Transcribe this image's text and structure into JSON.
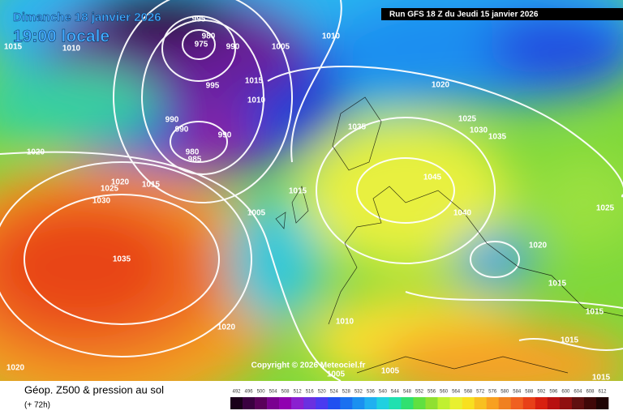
{
  "header": {
    "title": "Dimanche 18 janvier 2026",
    "time": "19:00 locale",
    "run": "Run GFS 18 Z du Jeudi 15 janvier 2026"
  },
  "map": {
    "isobar_labels": [
      "1015",
      "1010",
      "995",
      "980",
      "975",
      "990",
      "1005",
      "1010",
      "995",
      "1015",
      "1010",
      "990",
      "990",
      "990",
      "980",
      "985",
      "1035",
      "1025",
      "1030",
      "1035",
      "1020",
      "1020",
      "1020",
      "1025",
      "1015",
      "1030",
      "1015",
      "1005",
      "1045",
      "1040",
      "1025",
      "1020",
      "1035",
      "1015",
      "1015",
      "1020",
      "1010",
      "1015",
      "1020",
      "1005",
      "1005",
      "1015"
    ],
    "copyright": "Copyright © 2026 Meteociel.fr"
  },
  "legend": {
    "title": "Géop. Z500 & pression au sol",
    "subtitle": "(+ 72h)",
    "scale": [
      492,
      496,
      500,
      504,
      508,
      512,
      516,
      520,
      524,
      528,
      532,
      536,
      540,
      544,
      548,
      552,
      556,
      560,
      564,
      568,
      572,
      576,
      580,
      584,
      588,
      592,
      596,
      600,
      604,
      608,
      612
    ]
  }
}
